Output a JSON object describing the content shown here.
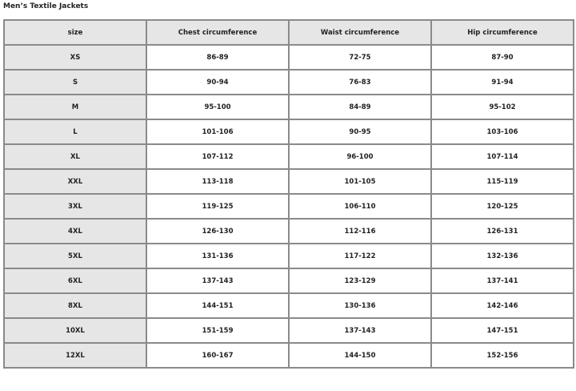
{
  "title": "Men’s Textile Jackets",
  "headers": [
    "size",
    "Chest circumference",
    "Waist circumference",
    "Hip circumference"
  ],
  "rows": [
    [
      "XS",
      "86-89",
      "72-75",
      "87-90"
    ],
    [
      "S",
      "90-94",
      "76-83",
      "91-94"
    ],
    [
      "M",
      "95-100",
      "84-89",
      "95-102"
    ],
    [
      "L",
      "101-106",
      "90-95",
      "103-106"
    ],
    [
      "XL",
      "107-112",
      "96-100",
      "107-114"
    ],
    [
      "XXL",
      "113-118",
      "101-105",
      "115-119"
    ],
    [
      "3XL",
      "119-125",
      "106-110",
      "120-125"
    ],
    [
      "4XL",
      "126-130",
      "112-116",
      "126-131"
    ],
    [
      "5XL",
      "131-136",
      "117-122",
      "132-136"
    ],
    [
      "6XL",
      "137-143",
      "123-129",
      "137-141"
    ],
    [
      "8XL",
      "144-151",
      "130-136",
      "142-146"
    ],
    [
      "10XL",
      "151-159",
      "137-143",
      "147-151"
    ],
    [
      "12XL",
      "160-167",
      "144-150",
      "152-156"
    ]
  ]
}
